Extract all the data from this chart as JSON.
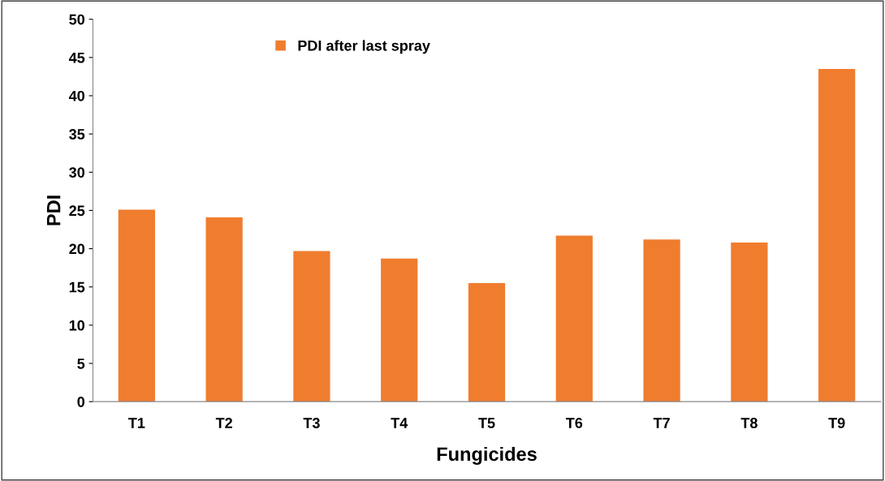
{
  "chart_data": {
    "type": "bar",
    "xlabel": "Fungicides",
    "ylabel": "PDI",
    "categories": [
      "T1",
      "T2",
      "T3",
      "T4",
      "T5",
      "T6",
      "T7",
      "T8",
      "T9"
    ],
    "series": [
      {
        "name": "PDI after last spray",
        "color": "#f07d2e",
        "values": [
          25.1,
          24.1,
          19.7,
          18.7,
          15.5,
          21.7,
          21.2,
          20.8,
          43.5
        ]
      }
    ],
    "ylim": [
      0,
      50
    ],
    "yticks": [
      0,
      5,
      10,
      15,
      20,
      25,
      30,
      35,
      40,
      45,
      50
    ],
    "grid": false,
    "legend": "top"
  }
}
